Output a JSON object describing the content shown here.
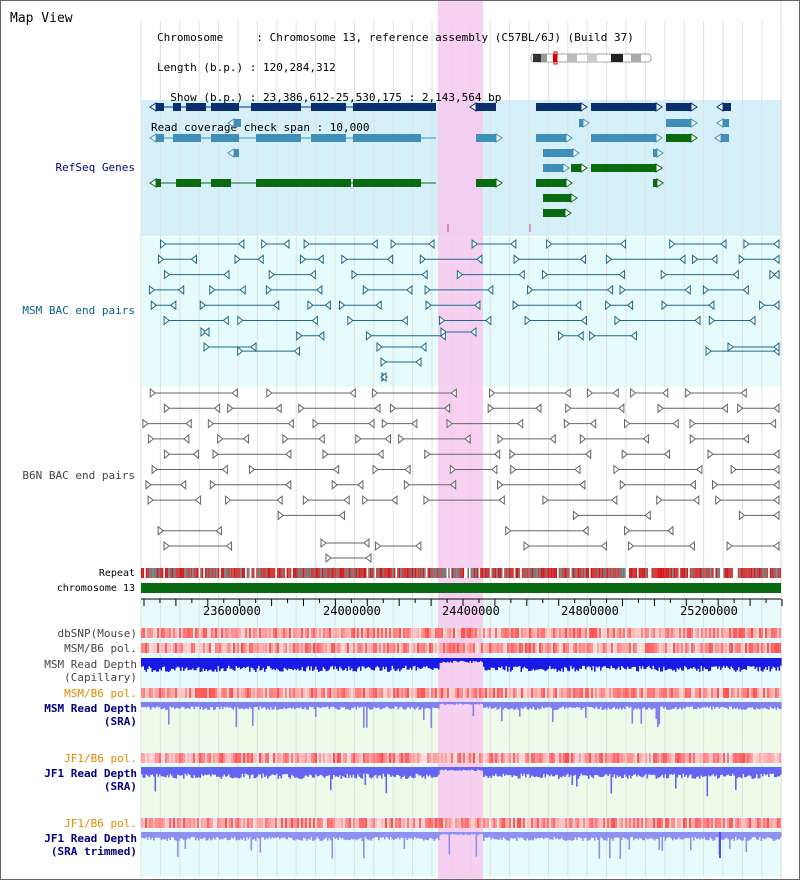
{
  "title": "Map View",
  "info": {
    "chromosome": "Chromosome     : Chromosome 13, reference assembly (C57BL/6J) (Build 37)",
    "length": "Length (b.p.) : 120,284,312",
    "show": "  Show (b.p.) : 23,386,612-25,530,175 : 2,143,564 bp",
    "coverage": "Read coverage check span : 10,000"
  },
  "tracks": {
    "refseq": "RefSeq Genes",
    "msm_bac": "MSM BAC end pairs",
    "b6n_bac": "B6N BAC end pairs",
    "repeat": "Repeat",
    "chromosome": "chromosome 13",
    "dbsnp": "dbSNP(Mouse)",
    "msm_pol_1": "MSM/B6 pol.",
    "msm_depth_cap_1": "MSM Read Depth",
    "msm_depth_cap_2": "(Capillary)",
    "msm_pol_2": "MSM/B6 pol.",
    "msm_depth_sra_1": "MSM Read Depth",
    "msm_depth_sra_2": "(SRA)",
    "jf1_pol_1": "JF1/B6 pol.",
    "jf1_depth_sra_1": "JF1 Read Depth",
    "jf1_depth_sra_2": "(SRA)",
    "jf1_pol_2": "JF1/B6 pol.",
    "jf1_depth_trim_1": "JF1 Read Depth",
    "jf1_depth_trim_2": "(SRA trimmed)"
  },
  "ruler": {
    "ticks": [
      "23600000",
      "24000000",
      "24400000",
      "24800000",
      "25200000"
    ]
  },
  "colors": {
    "refseq_bg": "#d6f0fa",
    "bac_bg": "#e6fbfb",
    "gene_dark": "#0a2f6e",
    "gene_mid": "#3f8fb8",
    "gene_green": "#0a6a12",
    "highlight": "#f7c8ef",
    "label_navy": "#000080",
    "label_teal": "#0b5f86",
    "label_gray": "#444444",
    "label_orange": "#e08a00"
  }
}
